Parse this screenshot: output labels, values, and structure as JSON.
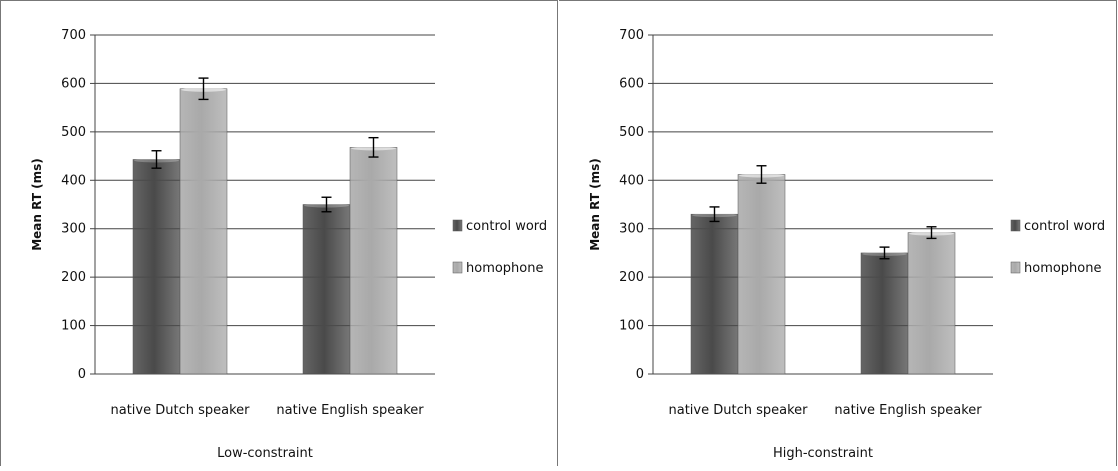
{
  "colors": {
    "control_word": "#4a4a4a",
    "homophone": "#a9a9a9"
  },
  "chart_data": [
    {
      "type": "bar",
      "title": "",
      "xlabel": "Low-constraint",
      "ylabel": "Mean RT (ms)",
      "ylim": [
        0,
        700
      ],
      "yticks": [
        "0",
        "100",
        "200",
        "300",
        "400",
        "500",
        "600",
        "700"
      ],
      "categories": [
        "native Dutch speaker",
        "native English speaker"
      ],
      "series": [
        {
          "name": "control word",
          "values": [
            443,
            350
          ],
          "errors": [
            18,
            15
          ]
        },
        {
          "name": "homophone",
          "values": [
            589,
            468
          ],
          "errors": [
            22,
            20
          ]
        }
      ],
      "grid": true,
      "legend": "right"
    },
    {
      "type": "bar",
      "title": "",
      "xlabel": "High-constraint",
      "ylabel": "Mean RT (ms)",
      "ylim": [
        0,
        700
      ],
      "yticks": [
        "0",
        "100",
        "200",
        "300",
        "400",
        "500",
        "600",
        "700"
      ],
      "categories": [
        "native Dutch speaker",
        "native English speaker"
      ],
      "series": [
        {
          "name": "control word",
          "values": [
            330,
            250
          ],
          "errors": [
            15,
            12
          ]
        },
        {
          "name": "homophone",
          "values": [
            412,
            292
          ],
          "errors": [
            18,
            12
          ]
        }
      ],
      "grid": true,
      "legend": "right"
    }
  ]
}
